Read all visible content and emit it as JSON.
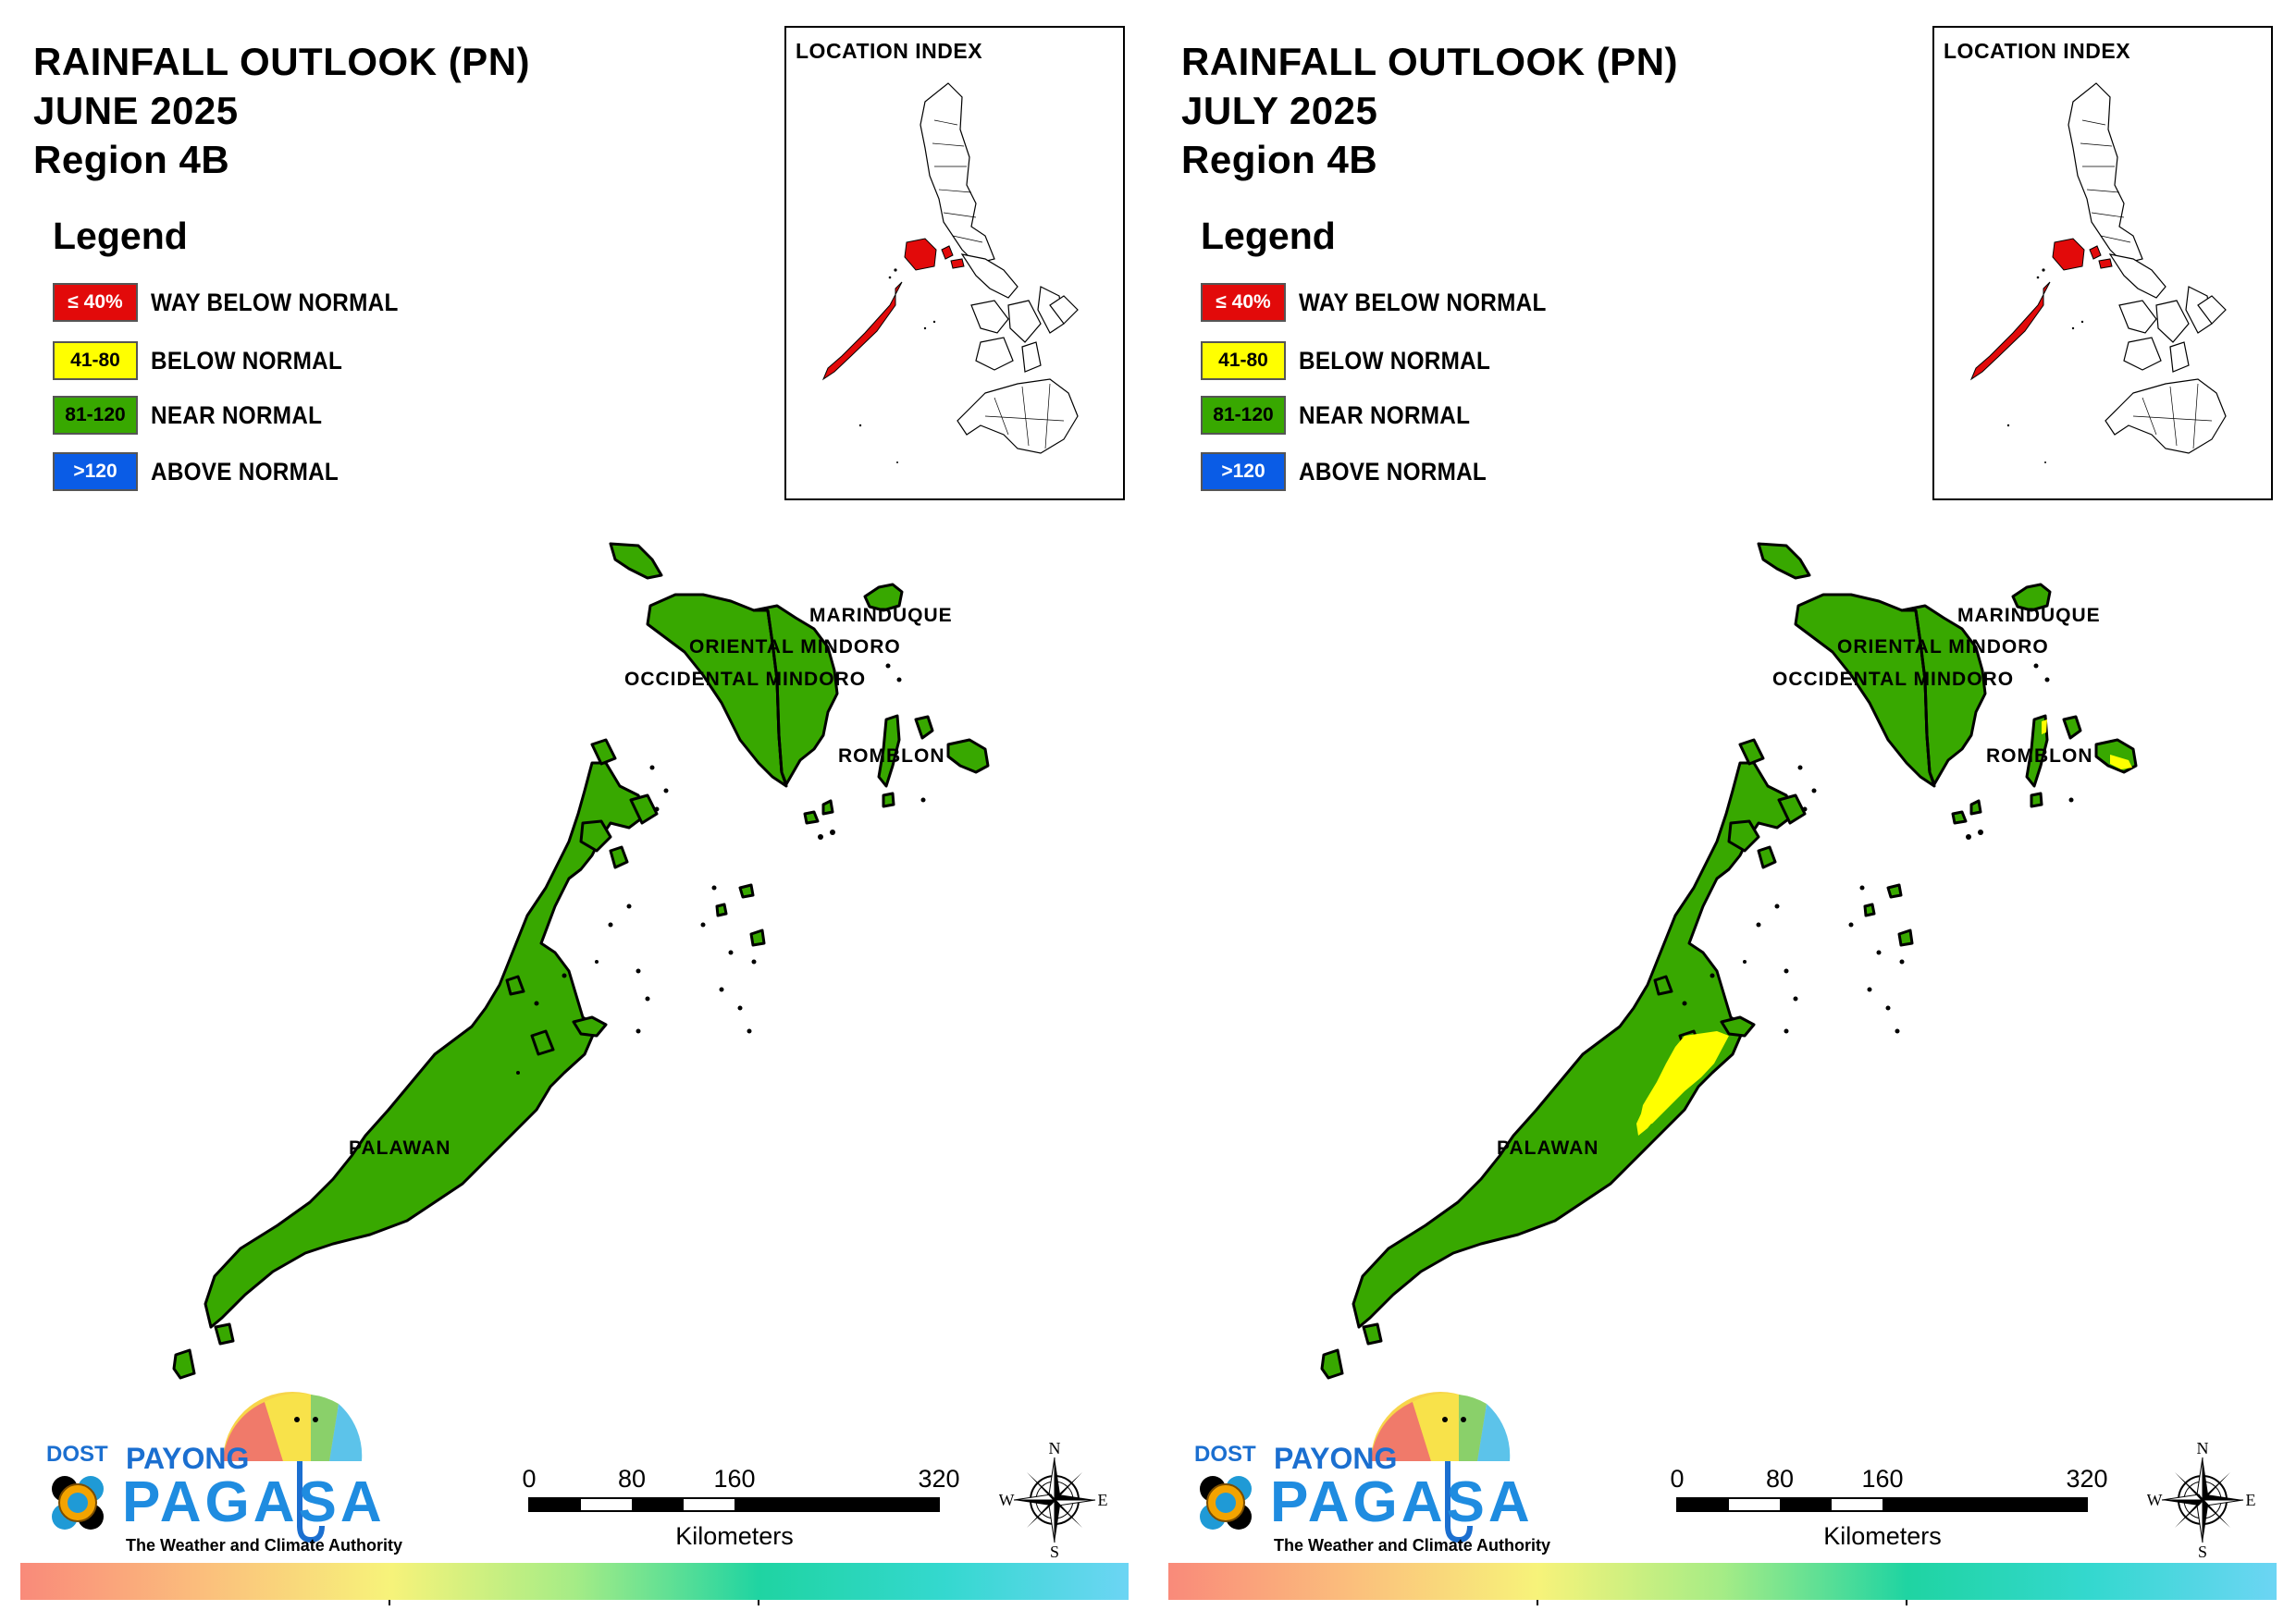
{
  "panels": [
    {
      "title_line1": "RAINFALL OUTLOOK (PN)",
      "title_line2": "JUNE 2025",
      "title_line3": "Region 4B",
      "legend_title": "Legend",
      "legend": [
        {
          "code": "≤ 40%",
          "label": "WAY BELOW NORMAL",
          "color": "#e20a0a",
          "text_color": "#ffffff"
        },
        {
          "code": "41-80",
          "label": "BELOW NORMAL",
          "color": "#ffff00",
          "text_color": "#000000"
        },
        {
          "code": "81-120",
          "label": "NEAR NORMAL",
          "color": "#38a800",
          "text_color": "#000000"
        },
        {
          "code": ">120",
          "label": "ABOVE NORMAL",
          "color": "#0a5ce6",
          "text_color": "#ffffff"
        }
      ],
      "location_index_title": "LOCATION INDEX",
      "provinces": {
        "marinduque": "MARINDUQUE",
        "oriental_mindoro": "ORIENTAL MINDORO",
        "occidental_mindoro": "OCCIDENTAL MINDORO",
        "romblon": "ROMBLON",
        "palawan": "PALAWAN"
      },
      "province_category": {
        "marinduque": "NEAR NORMAL",
        "oriental_mindoro": "NEAR NORMAL",
        "occidental_mindoro": "NEAR NORMAL",
        "romblon": "NEAR NORMAL",
        "palawan": "NEAR NORMAL"
      },
      "has_below_normal_areas": false,
      "scale": {
        "ticks": [
          "0",
          "80",
          "160",
          "320"
        ],
        "unit": "Kilometers"
      },
      "compass": {
        "n": "N",
        "s": "S",
        "e": "E",
        "w": "W"
      },
      "logo": {
        "dost": "DOST",
        "payong": "PAYONG",
        "pagasa": "PAGASA",
        "tagline": "The Weather and Climate Authority"
      }
    },
    {
      "title_line1": "RAINFALL OUTLOOK (PN)",
      "title_line2": "JULY 2025",
      "title_line3": "Region 4B",
      "legend_title": "Legend",
      "legend": [
        {
          "code": "≤ 40%",
          "label": "WAY BELOW NORMAL",
          "color": "#e20a0a",
          "text_color": "#ffffff"
        },
        {
          "code": "41-80",
          "label": "BELOW NORMAL",
          "color": "#ffff00",
          "text_color": "#000000"
        },
        {
          "code": "81-120",
          "label": "NEAR NORMAL",
          "color": "#38a800",
          "text_color": "#000000"
        },
        {
          "code": ">120",
          "label": "ABOVE NORMAL",
          "color": "#0a5ce6",
          "text_color": "#ffffff"
        }
      ],
      "location_index_title": "LOCATION INDEX",
      "provinces": {
        "marinduque": "MARINDUQUE",
        "oriental_mindoro": "ORIENTAL MINDORO",
        "occidental_mindoro": "OCCIDENTAL MINDORO",
        "romblon": "ROMBLON",
        "palawan": "PALAWAN"
      },
      "province_category": {
        "marinduque": "NEAR NORMAL",
        "oriental_mindoro": "NEAR NORMAL",
        "occidental_mindoro": "NEAR NORMAL",
        "romblon": "NEAR NORMAL / BELOW NORMAL",
        "palawan": "NEAR NORMAL / BELOW NORMAL"
      },
      "has_below_normal_areas": true,
      "scale": {
        "ticks": [
          "0",
          "80",
          "160",
          "320"
        ],
        "unit": "Kilometers"
      },
      "compass": {
        "n": "N",
        "s": "S",
        "e": "E",
        "w": "W"
      },
      "logo": {
        "dost": "DOST",
        "payong": "PAYONG",
        "pagasa": "PAGASA",
        "tagline": "The Weather and Climate Authority"
      }
    }
  ],
  "colors": {
    "near_normal": "#38a800",
    "below_normal": "#ffff00",
    "way_below_normal": "#e20a0a",
    "outline": "#000000"
  }
}
